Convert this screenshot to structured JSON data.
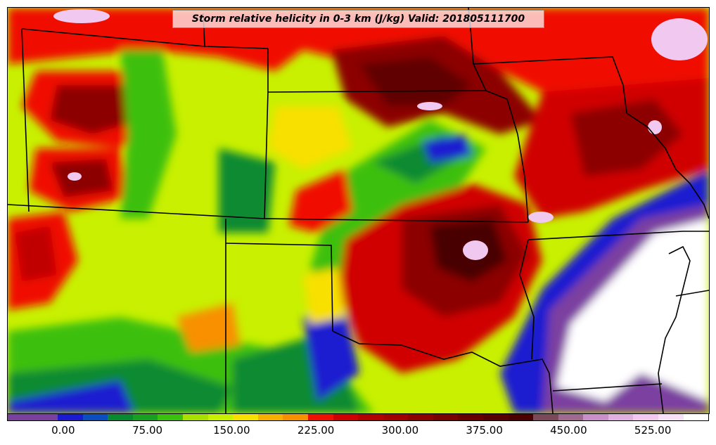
{
  "title": "Storm relative helicity in 0-3 km (J/kg) Valid: 201805111700",
  "palette": {
    "purple": "#7b3fa0",
    "navy": "#1a1ad0",
    "blue": "#0a4fc0",
    "darkgreen": "#0a8a30",
    "green": "#3cc010",
    "lime": "#a8e000",
    "yellowgreen": "#c8f000",
    "yellow": "#f8e000",
    "orange": "#f89000",
    "red": "#f01000",
    "crimson": "#c00000",
    "darkred": "#8c0000",
    "maroon": "#600000",
    "mauve": "#7a4a5a",
    "pinkpurple": "#c890c8",
    "lightpink": "#f0c8f0",
    "white": "#ffffff"
  },
  "colorbar": {
    "colors": [
      "#7b3fa0",
      "#7b3fa0",
      "#1a1ad0",
      "#0a4fc0",
      "#0a8a30",
      "#1aa020",
      "#3cc010",
      "#a8e000",
      "#c8f000",
      "#f8e000",
      "#f8b000",
      "#f89000",
      "#f01000",
      "#d00000",
      "#b00000",
      "#a00000",
      "#8c0000",
      "#780000",
      "#660000",
      "#580000",
      "#4a0000",
      "#7a4a5a",
      "#a06a90",
      "#c890c8",
      "#e0b0e0",
      "#f0c8f0",
      "#f8e0f8",
      "#ffffff"
    ],
    "tick_labels": [
      "0.00",
      "75.00",
      "150.00",
      "225.00",
      "300.00",
      "375.00",
      "450.00",
      "525.00"
    ],
    "tick_values": [
      0,
      75,
      150,
      225,
      300,
      375,
      450,
      525
    ],
    "range": [
      -50,
      575
    ],
    "units": "J/kg"
  }
}
